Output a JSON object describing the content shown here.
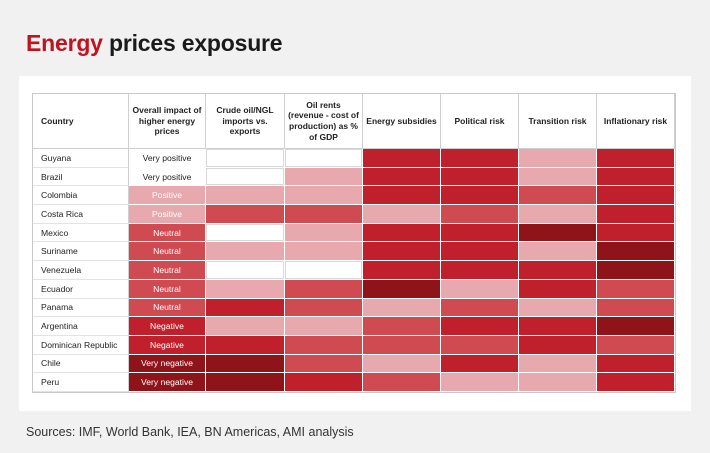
{
  "title": {
    "accent": "Energy",
    "rest": " prices exposure"
  },
  "columns": [
    "Country",
    "Overall impact of higher energy prices",
    "Crude oil/NGL imports vs. exports",
    "Oil rents (revenue - cost of production) as % of GDP",
    "Energy subsidies",
    "Political risk",
    "Transition risk",
    "Inflationary risk"
  ],
  "colors": {
    "white": "#ffffff",
    "light": "#e8a9ae",
    "mid": "#d04a52",
    "strong": "#c0202c",
    "dark": "#8e1419",
    "impact_text_light": "#222222",
    "impact_text_dark": "#ffffff"
  },
  "rows": [
    {
      "country": "Guyana",
      "impact": "Very positive",
      "impact_level": "white",
      "levels": [
        "white",
        "white",
        "strong",
        "strong",
        "light",
        "strong"
      ]
    },
    {
      "country": "Brazil",
      "impact": "Very positive",
      "impact_level": "white",
      "levels": [
        "white",
        "light",
        "strong",
        "strong",
        "light",
        "strong"
      ]
    },
    {
      "country": "Colombia",
      "impact": "Positive",
      "impact_level": "light",
      "levels": [
        "light",
        "light",
        "strong",
        "strong",
        "mid",
        "strong"
      ]
    },
    {
      "country": "Costa Rica",
      "impact": "Positive",
      "impact_level": "light",
      "levels": [
        "mid",
        "mid",
        "light",
        "mid",
        "light",
        "strong"
      ]
    },
    {
      "country": "Mexico",
      "impact": "Neutral",
      "impact_level": "mid",
      "levels": [
        "white",
        "light",
        "strong",
        "strong",
        "dark",
        "strong"
      ]
    },
    {
      "country": "Suriname",
      "impact": "Neutral",
      "impact_level": "mid",
      "levels": [
        "light",
        "light",
        "strong",
        "strong",
        "light",
        "dark"
      ]
    },
    {
      "country": "Venezuela",
      "impact": "Neutral",
      "impact_level": "mid",
      "levels": [
        "white",
        "white",
        "strong",
        "strong",
        "strong",
        "dark"
      ]
    },
    {
      "country": "Ecuador",
      "impact": "Neutral",
      "impact_level": "mid",
      "levels": [
        "light",
        "mid",
        "dark",
        "light",
        "strong",
        "mid"
      ]
    },
    {
      "country": "Panama",
      "impact": "Neutral",
      "impact_level": "mid",
      "levels": [
        "strong",
        "mid",
        "light",
        "mid",
        "light",
        "mid"
      ]
    },
    {
      "country": "Argentina",
      "impact": "Negative",
      "impact_level": "strong",
      "levels": [
        "light",
        "light",
        "mid",
        "strong",
        "strong",
        "dark"
      ]
    },
    {
      "country": "Dominican Republic",
      "impact": "Negative",
      "impact_level": "strong",
      "levels": [
        "strong",
        "mid",
        "mid",
        "mid",
        "strong",
        "mid"
      ]
    },
    {
      "country": "Chile",
      "impact": "Very negative",
      "impact_level": "dark",
      "levels": [
        "dark",
        "mid",
        "light",
        "strong",
        "light",
        "strong"
      ]
    },
    {
      "country": "Peru",
      "impact": "Very negative",
      "impact_level": "dark",
      "levels": [
        "dark",
        "strong",
        "mid",
        "light",
        "light",
        "strong"
      ]
    }
  ],
  "sources": "Sources: IMF, World Bank, IEA, BN Americas, AMI analysis"
}
